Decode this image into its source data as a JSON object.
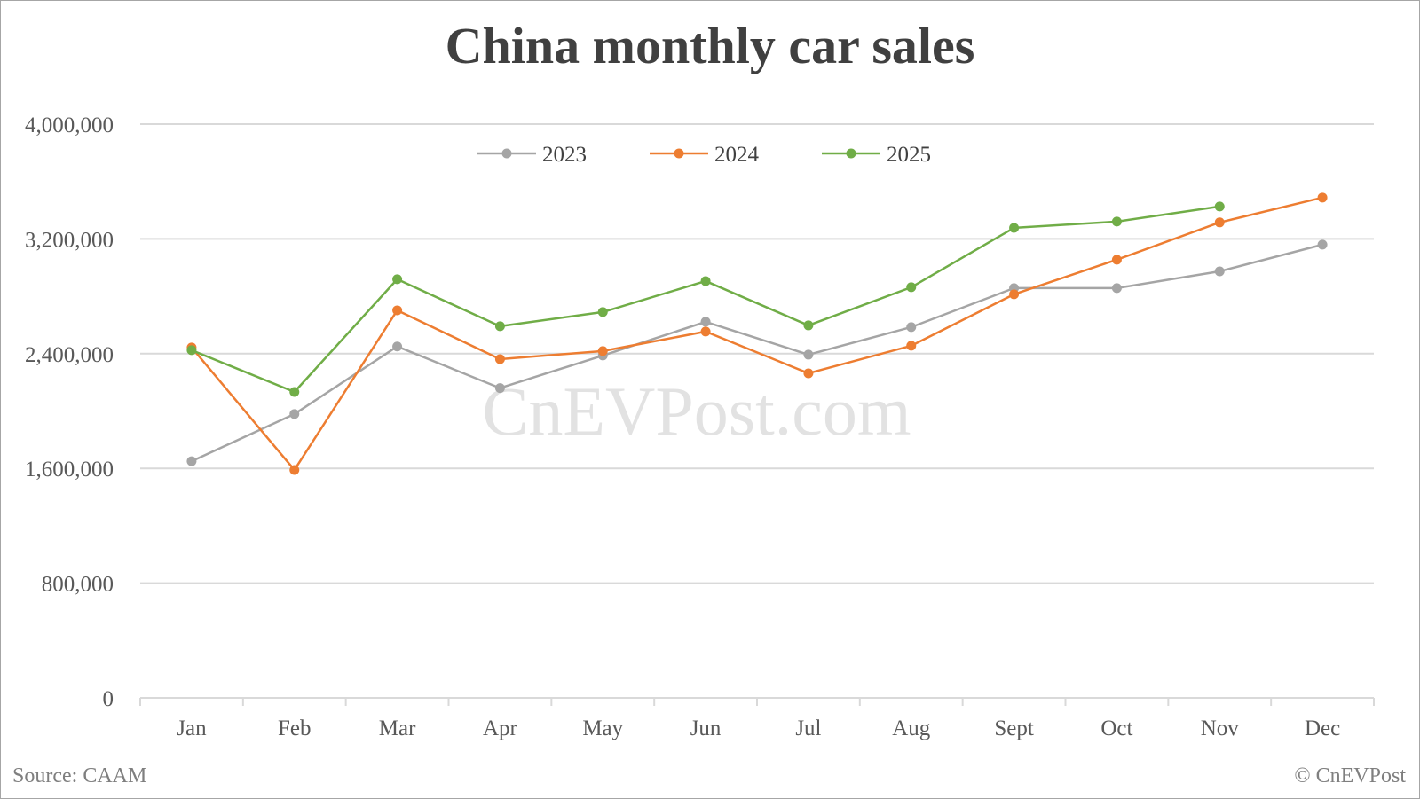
{
  "chart_data": {
    "type": "line",
    "title": "China monthly car sales",
    "xlabel": "",
    "ylabel": "",
    "categories": [
      "Jan",
      "Feb",
      "Mar",
      "Apr",
      "May",
      "Jun",
      "Jul",
      "Aug",
      "Sept",
      "Oct",
      "Nov",
      "Dec"
    ],
    "series": [
      {
        "name": "2023",
        "color": "#a5a5a5",
        "values": [
          1650000,
          1979000,
          2450000,
          2160000,
          2387000,
          2622000,
          2393000,
          2585000,
          2857000,
          2857000,
          2974000,
          3160000
        ]
      },
      {
        "name": "2024",
        "color": "#ed7d31",
        "values": [
          2443000,
          1589000,
          2702000,
          2362000,
          2418000,
          2554000,
          2263000,
          2455000,
          2814000,
          3055000,
          3315000,
          3488000
        ]
      },
      {
        "name": "2025",
        "color": "#70ad47",
        "values": [
          2424000,
          2133000,
          2919000,
          2591000,
          2690000,
          2906000,
          2597000,
          2863000,
          3277000,
          3321000,
          3426000,
          null
        ]
      }
    ],
    "ylim": [
      0,
      4000000
    ],
    "yticks": [
      0,
      800000,
      1600000,
      2400000,
      3200000,
      4000000
    ],
    "ytick_labels": [
      "0",
      "800,000",
      "1,600,000",
      "2,400,000",
      "3,200,000",
      "4,000,000"
    ],
    "grid": true,
    "legend_position": "top-center",
    "watermark": "CnEVPost.com"
  },
  "footer": {
    "source": "Source: CAAM",
    "copyright": "© CnEVPost"
  }
}
